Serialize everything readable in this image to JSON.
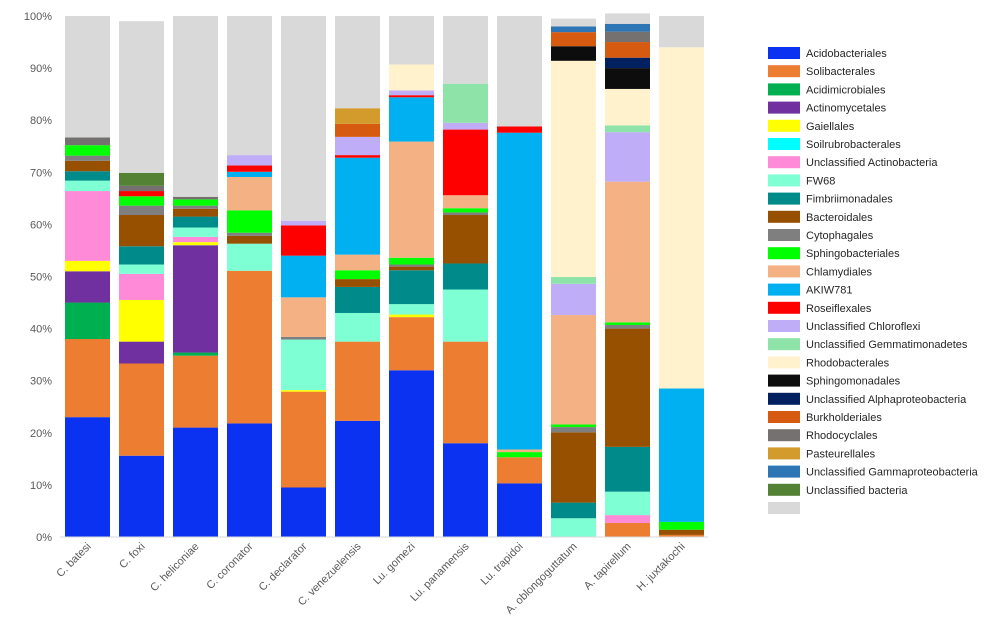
{
  "chart_data": {
    "type": "bar",
    "stacked": true,
    "title": "",
    "xlabel": "",
    "ylabel": "",
    "ylim": [
      0,
      100
    ],
    "y_ticks": [
      "0%",
      "10%",
      "20%",
      "30%",
      "40%",
      "50%",
      "60%",
      "70%",
      "80%",
      "90%",
      "100%"
    ],
    "grid": false,
    "legend_position": "right",
    "categories": [
      "C. batesi",
      "C. foxi",
      "C. heliconiae",
      "C. coronator",
      "C. declarator",
      "C. venezuelensis",
      "Lu. gomezi",
      "Lu. panamensis",
      "Lu. trapidoi",
      "A. oblongoguttatum",
      "A. tapirellum",
      "H. juxtakochi"
    ],
    "series": [
      {
        "name": "Acidobacteriales",
        "color": "#0A32F0",
        "values": [
          23,
          15.6,
          21,
          21.8,
          9.5,
          22.3,
          32,
          18,
          10.3,
          0,
          0,
          0
        ]
      },
      {
        "name": "Solibacterales",
        "color": "#ED7D31",
        "values": [
          15,
          17.7,
          13.8,
          29.3,
          18.4,
          15.2,
          10.2,
          19.5,
          5,
          0,
          2.7,
          0.4
        ]
      },
      {
        "name": "Acidimicrobiales",
        "color": "#00B050",
        "values": [
          7,
          0,
          0.6,
          0,
          0,
          0,
          0,
          0,
          0,
          0,
          0,
          0
        ]
      },
      {
        "name": "Actinomycetales",
        "color": "#7030A0",
        "values": [
          6,
          4.2,
          20.6,
          0,
          0,
          0,
          0,
          0,
          0,
          0,
          0,
          0
        ]
      },
      {
        "name": "Gaiellales",
        "color": "#FFFF00",
        "values": [
          2,
          8,
          0.6,
          0,
          0.3,
          0,
          0.5,
          0,
          0,
          0,
          0,
          0
        ]
      },
      {
        "name": "Soilrubrobacterales",
        "color": "#00FFFF",
        "values": [
          0,
          0,
          0,
          0,
          0,
          0,
          0,
          0,
          0,
          0,
          0,
          0
        ]
      },
      {
        "name": "Unclassified Actinobacteria",
        "color": "#FF8AD8",
        "values": [
          13.4,
          5,
          1,
          0,
          0,
          0,
          0,
          0,
          0,
          0,
          1.5,
          0
        ]
      },
      {
        "name": "FW68",
        "color": "#7FFFD4",
        "values": [
          2,
          1.8,
          1.8,
          5.2,
          9.7,
          5.5,
          2,
          10,
          0,
          3.6,
          4.5,
          0
        ]
      },
      {
        "name": "Fimbriimonadales",
        "color": "#008B8B",
        "values": [
          1.8,
          3.5,
          2.1,
          0,
          0,
          5,
          6.5,
          5,
          0,
          3,
          8.6,
          0
        ]
      },
      {
        "name": "Bacteroidales",
        "color": "#974F00",
        "values": [
          2,
          6,
          1.5,
          1.5,
          0,
          1.5,
          0.7,
          9.3,
          0,
          13.5,
          22.7,
          1
        ]
      },
      {
        "name": "Cytophagales",
        "color": "#7F7F7F",
        "values": [
          1,
          1.8,
          0.6,
          0.6,
          0.5,
          0,
          0.4,
          0.5,
          0,
          1,
          0.7,
          0
        ]
      },
      {
        "name": "Sphingobacteriales",
        "color": "#00FF00",
        "values": [
          2,
          1.8,
          1.2,
          4.3,
          0,
          1.7,
          1.3,
          0.8,
          1,
          0.5,
          0.5,
          1.5
        ]
      },
      {
        "name": "Chlamydiales",
        "color": "#F4B183",
        "values": [
          0,
          0,
          0,
          6.4,
          7.6,
          3,
          22.3,
          2.5,
          0.5,
          21,
          27,
          0
        ]
      },
      {
        "name": "AKIW781",
        "color": "#00B0F0",
        "values": [
          0,
          0,
          0,
          1,
          8,
          18.6,
          8.5,
          0,
          60.8,
          0,
          0,
          25.6
        ]
      },
      {
        "name": "Roseiflexales",
        "color": "#FF0000",
        "values": [
          0,
          1,
          0,
          1.2,
          5.8,
          0.5,
          0.4,
          12.6,
          1.2,
          0,
          0,
          0
        ]
      },
      {
        "name": "Unclassified Chloroflexi",
        "color": "#BFAEF7",
        "values": [
          0,
          0,
          0,
          2,
          0.9,
          3.5,
          0.9,
          1.3,
          0,
          6,
          9.5,
          0
        ]
      },
      {
        "name": "Unclassified Gemmatimonadetes",
        "color": "#8DE3A8",
        "values": [
          0,
          0,
          0,
          0,
          0,
          0,
          0,
          7.5,
          0,
          1.3,
          1.3,
          0
        ]
      },
      {
        "name": "Rhodobacterales",
        "color": "#FFF2CC",
        "values": [
          0,
          0,
          0,
          0,
          0,
          0,
          5,
          0,
          0,
          41.5,
          7,
          65.5
        ]
      },
      {
        "name": "Sphingomonadales",
        "color": "#0D0D0D",
        "values": [
          0,
          0,
          0,
          0,
          0,
          0,
          0,
          0,
          0,
          2.8,
          4,
          0
        ]
      },
      {
        "name": "Unclassified Alphaproteobacteria",
        "color": "#002060",
        "values": [
          0,
          0,
          0,
          0,
          0,
          0,
          0,
          0,
          0,
          0,
          2,
          0
        ]
      },
      {
        "name": "Burkholderiales",
        "color": "#D65A0F",
        "values": [
          0,
          0,
          0,
          0,
          0,
          2.5,
          0,
          0,
          0,
          2.7,
          3,
          0
        ]
      },
      {
        "name": "Rhodocyclales",
        "color": "#767171",
        "values": [
          1.5,
          1,
          0.5,
          0,
          0,
          0,
          0,
          0,
          0,
          0,
          2,
          0
        ]
      },
      {
        "name": "Pasteurellales",
        "color": "#D39A2C",
        "values": [
          0,
          0,
          0,
          0,
          0,
          3,
          0,
          0,
          0,
          0,
          0,
          0
        ]
      },
      {
        "name": "Unclassified Gammaproteobacteria",
        "color": "#2E75B6",
        "values": [
          0,
          0,
          0,
          0,
          0,
          0,
          0,
          0,
          0,
          1.1,
          1.5,
          0
        ]
      },
      {
        "name": "Unclassified bacteria",
        "color": "#548235",
        "values": [
          0,
          2.5,
          0,
          0,
          0,
          0,
          0,
          0,
          0,
          0,
          0,
          0
        ]
      },
      {
        "name": "",
        "color": "#D9D9D9",
        "values": [
          23.3,
          29.1,
          34.7,
          26.7,
          39.3,
          17.7,
          9.3,
          13,
          21.2,
          1.5,
          2,
          6
        ]
      }
    ]
  }
}
